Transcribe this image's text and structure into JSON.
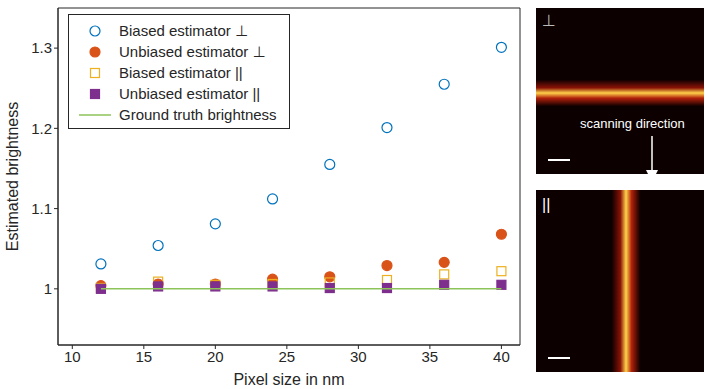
{
  "chart_data": {
    "type": "scatter",
    "x_label": "Pixel size in nm",
    "y_label": "Estimated brightness",
    "x": [
      12,
      16,
      20,
      24,
      28,
      32,
      36,
      40
    ],
    "series": [
      {
        "name": "Biased estimator ⊥",
        "color": "#0072bd",
        "marker": "open-circle",
        "values": [
          1.031,
          1.054,
          1.081,
          1.112,
          1.155,
          1.201,
          1.255,
          1.301
        ]
      },
      {
        "name": "Unbiased estimator ⊥",
        "color": "#d95319",
        "marker": "filled-circle",
        "values": [
          1.004,
          1.006,
          1.006,
          1.012,
          1.015,
          1.029,
          1.033,
          1.068
        ]
      },
      {
        "name": "Biased estimator ||",
        "color": "#edb120",
        "marker": "open-square",
        "values": [
          1.001,
          1.009,
          1.005,
          1.006,
          1.008,
          1.011,
          1.018,
          1.022
        ]
      },
      {
        "name": "Unbiased estimator ||",
        "color": "#7e2f8e",
        "marker": "filled-square",
        "values": [
          1.0,
          1.003,
          1.003,
          1.003,
          1.001,
          1.001,
          1.005,
          1.005
        ]
      },
      {
        "name": "Ground truth brightness",
        "color": "#8cc45a",
        "type": "line",
        "line_style": "solid",
        "values": [
          1,
          1,
          1,
          1,
          1,
          1,
          1,
          1
        ]
      }
    ],
    "xlim": [
      9,
      41.3
    ],
    "xticks": [
      10,
      15,
      20,
      25,
      30,
      35,
      40
    ],
    "ylim": [
      0.93,
      1.35
    ],
    "yticks": [
      1,
      1.1,
      1.2,
      1.3
    ],
    "grid": false,
    "legend": "upper left"
  },
  "images": [
    {
      "label": "⊥",
      "annotation": "scanning direction"
    },
    {
      "label": "||"
    }
  ]
}
